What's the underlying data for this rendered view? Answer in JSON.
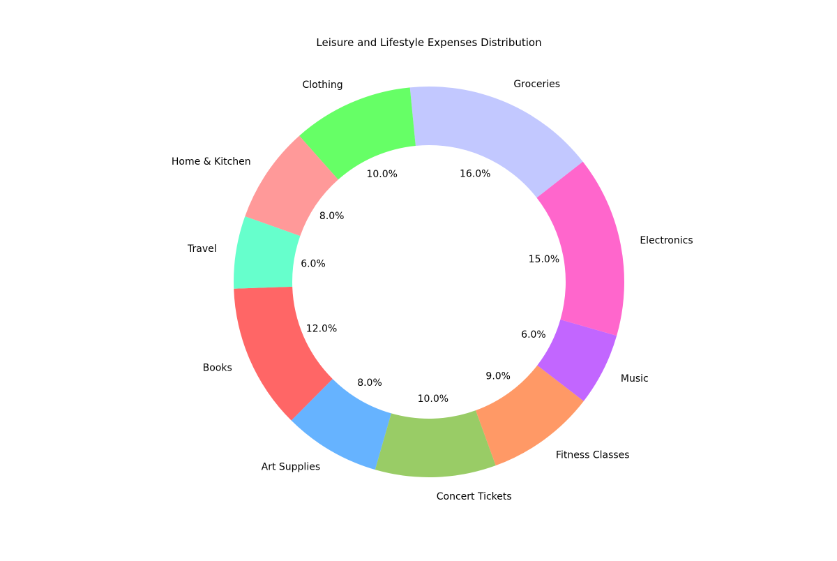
{
  "chart_data": {
    "type": "pie",
    "title": "Leisure and Lifestyle Expenses Distribution",
    "donut": true,
    "categories": [
      "Books",
      "Art Supplies",
      "Concert Tickets",
      "Fitness Classes",
      "Music",
      "Electronics",
      "Groceries",
      "Clothing",
      "Home & Kitchen",
      "Travel"
    ],
    "values": [
      12,
      8,
      10,
      9,
      6,
      15,
      16,
      10,
      8,
      6
    ],
    "percent_labels": [
      "12.0%",
      "8.0%",
      "10.0%",
      "9.0%",
      "6.0%",
      "15.0%",
      "16.0%",
      "10.0%",
      "8.0%",
      "6.0%"
    ],
    "colors": [
      "#ff6666",
      "#66b3ff",
      "#99cc66",
      "#ff9966",
      "#c266ff",
      "#ff66cc",
      "#c2c8ff",
      "#66ff66",
      "#ff9999",
      "#66ffcc"
    ],
    "legend": "none"
  }
}
